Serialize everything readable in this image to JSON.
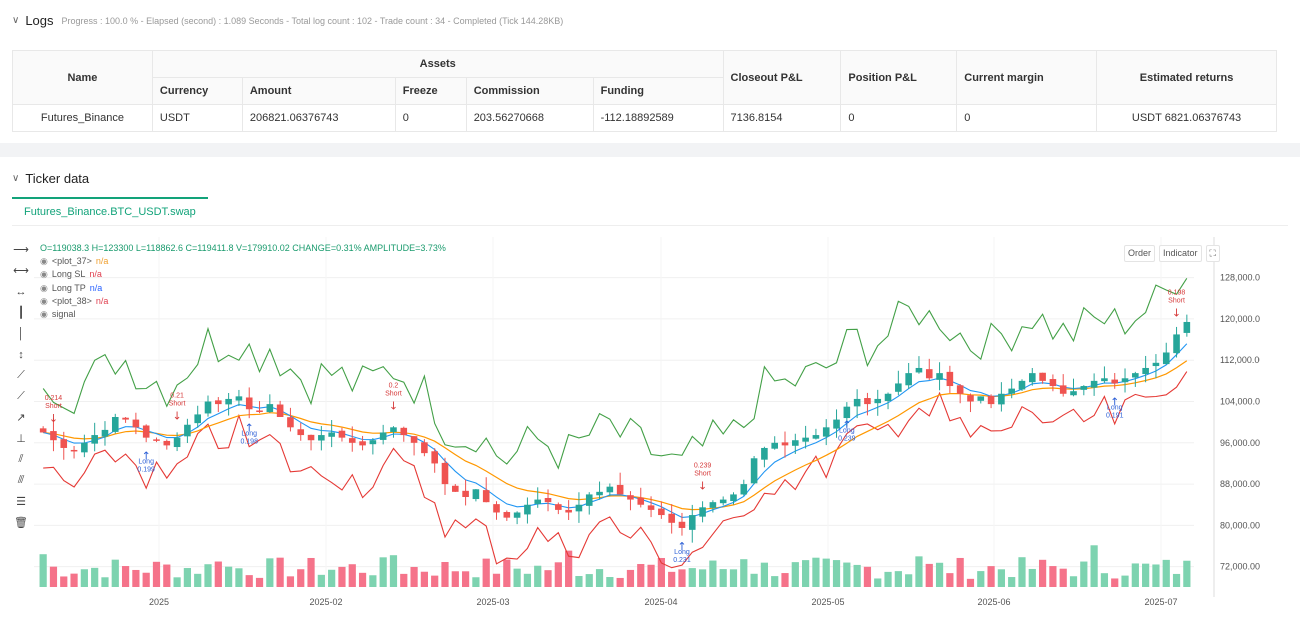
{
  "logs": {
    "title": "Logs",
    "subtitle": "Progress : 100.0 % - Elapsed (second) : 1.089  Seconds - Total log count : 102 - Trade count : 34 - Completed (Tick 144.28KB)",
    "table": {
      "group_header": "Assets",
      "headers": {
        "name": "Name",
        "currency": "Currency",
        "amount": "Amount",
        "freeze": "Freeze",
        "commission": "Commission",
        "funding": "Funding",
        "closeout": "Closeout P&L",
        "position": "Position P&L",
        "margin": "Current margin",
        "returns": "Estimated returns"
      },
      "row": {
        "name": "Futures_Binance",
        "currency": "USDT",
        "amount": "206821.06376743",
        "freeze": "0",
        "commission": "203.56270668",
        "funding": "-112.18892589",
        "closeout": "7136.8154",
        "position": "0",
        "margin": "0",
        "returns": "USDT 6821.06376743"
      }
    }
  },
  "ticker": {
    "title": "Ticker data",
    "tab": "Futures_Binance.BTC_USDT.swap",
    "buttons": {
      "order": "Order",
      "indicator": "Indicator"
    },
    "ohlc": "O=119038.3 H=123300 L=118862.6 C=119411.8 V=179910.02 CHANGE=0.31% AMPLITUDE=3.73%",
    "legend": [
      {
        "name": "<plot_37>",
        "value": "n/a",
        "color": "#f0a030"
      },
      {
        "name": "Long SL",
        "value": "n/a",
        "color": "#e04050"
      },
      {
        "name": "Long TP",
        "value": "n/a",
        "color": "#2962ff"
      },
      {
        "name": "<plot_38>",
        "value": "n/a",
        "color": "#e04050"
      },
      {
        "name": "signal",
        "value": "",
        "color": "#888888"
      }
    ],
    "tools": [
      "cursor-line-icon",
      "horizontal-line-icon",
      "h-ray-icon",
      "vertical-line-icon",
      "vertical-bar-icon",
      "v-range-icon",
      "trend-line-icon",
      "ray-icon",
      "arrow-icon",
      "measure-icon",
      "parallel-icon",
      "pitchfork-icon",
      "fib-icon",
      "trash-icon"
    ]
  },
  "chart_data": {
    "type": "candlestick",
    "y_ticks": [
      "128,000.00",
      "120,000.00",
      "112,000.00",
      "104,000.00",
      "96,000.00",
      "88,000.00",
      "80,000.00",
      "72,000.00"
    ],
    "x_ticks": [
      "2025",
      "2025-02",
      "2025-03",
      "2025-04",
      "2025-05",
      "2025-06",
      "2025-07"
    ],
    "ylim": [
      70000,
      132000
    ],
    "close_path": [
      98000,
      96500,
      95000,
      94500,
      96000,
      97500,
      98500,
      101000,
      100500,
      99000,
      97000,
      96500,
      95500,
      97000,
      99500,
      101500,
      104000,
      103500,
      104500,
      105000,
      102500,
      102000,
      103500,
      101000,
      99000,
      97500,
      96500,
      97500,
      98000,
      97000,
      96000,
      95500,
      96500,
      98000,
      99000,
      97500,
      96000,
      94000,
      92000,
      88000,
      86500,
      85500,
      87000,
      84500,
      82500,
      81500,
      82500,
      84000,
      85000,
      84500,
      83000,
      82500,
      84000,
      86000,
      86500,
      87500,
      86000,
      85000,
      84000,
      83000,
      82000,
      80500,
      79500,
      82000,
      83500,
      84500,
      85000,
      86000,
      88000,
      93000,
      95000,
      96000,
      95500,
      96500,
      97000,
      97500,
      99000,
      100500,
      103000,
      104500,
      103500,
      104500,
      105500,
      107500,
      109500,
      110500,
      108500,
      109500,
      107000,
      105500,
      104000,
      105000,
      103500,
      105500,
      106500,
      108000,
      109500,
      108000,
      107000,
      105500,
      106000,
      107000,
      108000,
      108500,
      107500,
      108500,
      109500,
      110500,
      111500,
      113500,
      117000,
      119412
    ],
    "annotations": [
      {
        "text": "0.214",
        "sub": "Short",
        "kind": "short"
      },
      {
        "text": "0.21",
        "sub": "Short",
        "kind": "short"
      },
      {
        "text": "0.2",
        "sub": "Short",
        "kind": "short"
      },
      {
        "text": "0.239",
        "sub": "Short",
        "kind": "short"
      },
      {
        "text": "0.198",
        "sub": "Short",
        "kind": "short"
      },
      {
        "text": "Long",
        "sub": "0.199",
        "kind": "long"
      },
      {
        "text": "Long",
        "sub": "0.198",
        "kind": "long"
      },
      {
        "text": "Long",
        "sub": "0.231",
        "kind": "long"
      },
      {
        "text": "Long",
        "sub": "0.239",
        "kind": "long"
      },
      {
        "text": "Long",
        "sub": "0.191",
        "kind": "long"
      }
    ],
    "colors": {
      "up": "#26a69a",
      "down": "#ef5350",
      "upper_band": "#43a047",
      "lower_band": "#e53935",
      "ema_fast": "#2196f3",
      "ema_slow": "#ff9800"
    }
  }
}
